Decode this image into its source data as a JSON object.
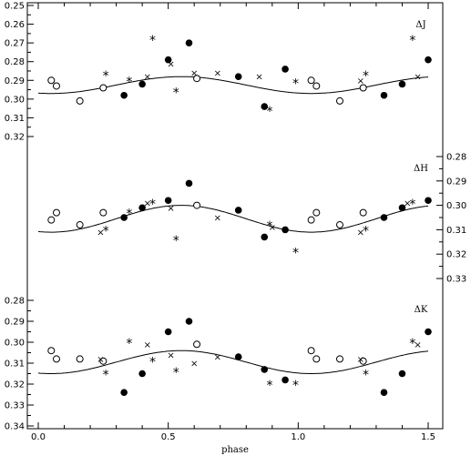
{
  "chart_data": {
    "type": "scatter",
    "x_label": "phase",
    "x_range": [
      -0.1,
      1.57
    ],
    "x_ticks": [
      "0.0",
      "0.5",
      "1.0",
      "1.5"
    ],
    "x_tick_values": [
      0,
      0.5,
      1.0,
      1.5
    ],
    "symbol_legend": {
      "filled": "●",
      "open": "○",
      "star": "*",
      "cross": "×"
    },
    "panels": [
      {
        "label": "ΔJ",
        "y_ticks": [
          "0.25",
          "0.26",
          "0.27",
          "0.28",
          "0.29",
          "0.30",
          "0.31",
          "0.32"
        ],
        "y_tick_values": [
          0.25,
          0.26,
          0.27,
          0.28,
          0.29,
          0.3,
          0.31,
          0.32
        ],
        "y_range": [
          0.25,
          0.325
        ],
        "tick_side": "left",
        "curve": {
          "mean": 0.2925,
          "amplitude": 0.0045
        },
        "filled": [
          [
            0.33,
            0.298
          ],
          [
            0.4,
            0.292
          ],
          [
            0.5,
            0.279
          ],
          [
            0.58,
            0.27
          ],
          [
            0.77,
            0.288
          ],
          [
            0.87,
            0.304
          ],
          [
            0.95,
            0.284
          ],
          [
            1.33,
            0.298
          ],
          [
            1.4,
            0.292
          ],
          [
            1.5,
            0.279
          ]
        ],
        "open": [
          [
            0.05,
            0.29
          ],
          [
            0.07,
            0.293
          ],
          [
            0.16,
            0.301
          ],
          [
            0.25,
            0.294
          ],
          [
            0.61,
            0.289
          ],
          [
            1.05,
            0.29
          ],
          [
            1.07,
            0.293
          ],
          [
            1.16,
            0.301
          ],
          [
            1.25,
            0.294
          ]
        ],
        "star": [
          [
            0.26,
            0.287
          ],
          [
            0.35,
            0.29
          ],
          [
            0.44,
            0.268
          ],
          [
            0.53,
            0.296
          ],
          [
            0.89,
            0.306
          ],
          [
            0.99,
            0.291
          ],
          [
            1.26,
            0.287
          ],
          [
            1.44,
            0.268
          ]
        ],
        "cross": [
          [
            0.42,
            0.288
          ],
          [
            0.51,
            0.281
          ],
          [
            0.6,
            0.286
          ],
          [
            0.69,
            0.286
          ],
          [
            0.85,
            0.288
          ],
          [
            1.24,
            0.29
          ],
          [
            1.46,
            0.288
          ]
        ]
      },
      {
        "label": "ΔH",
        "y_ticks": [
          "0.28",
          "0.29",
          "0.30",
          "0.31",
          "0.32",
          "0.33"
        ],
        "y_tick_values": [
          0.28,
          0.29,
          0.3,
          0.31,
          0.32,
          0.33
        ],
        "y_range": [
          0.28,
          0.335
        ],
        "tick_side": "right",
        "curve": {
          "mean": 0.3055,
          "amplitude": 0.0055
        },
        "filled": [
          [
            0.33,
            0.305
          ],
          [
            0.4,
            0.301
          ],
          [
            0.5,
            0.298
          ],
          [
            0.58,
            0.291
          ],
          [
            0.77,
            0.302
          ],
          [
            0.87,
            0.313
          ],
          [
            0.95,
            0.31
          ],
          [
            1.33,
            0.305
          ],
          [
            1.4,
            0.301
          ],
          [
            1.5,
            0.298
          ]
        ],
        "open": [
          [
            0.05,
            0.306
          ],
          [
            0.07,
            0.303
          ],
          [
            0.16,
            0.308
          ],
          [
            0.25,
            0.303
          ],
          [
            0.61,
            0.3
          ],
          [
            1.05,
            0.306
          ],
          [
            1.07,
            0.303
          ],
          [
            1.16,
            0.308
          ],
          [
            1.25,
            0.303
          ]
        ],
        "star": [
          [
            0.26,
            0.31
          ],
          [
            0.35,
            0.303
          ],
          [
            0.44,
            0.299
          ],
          [
            0.53,
            0.314
          ],
          [
            0.89,
            0.308
          ],
          [
            0.99,
            0.319
          ],
          [
            1.26,
            0.31
          ],
          [
            1.44,
            0.299
          ]
        ],
        "cross": [
          [
            0.24,
            0.311
          ],
          [
            0.42,
            0.299
          ],
          [
            0.51,
            0.301
          ],
          [
            0.69,
            0.305
          ],
          [
            0.9,
            0.309
          ],
          [
            1.24,
            0.311
          ],
          [
            1.42,
            0.299
          ]
        ]
      },
      {
        "label": "ΔK",
        "y_ticks": [
          "0.28",
          "0.29",
          "0.30",
          "0.31",
          "0.32",
          "0.33",
          "0.34"
        ],
        "y_tick_values": [
          0.28,
          0.29,
          0.3,
          0.31,
          0.32,
          0.33,
          0.34
        ],
        "y_range": [
          0.28,
          0.341
        ],
        "tick_side": "left",
        "curve": {
          "mean": 0.3095,
          "amplitude": 0.0055
        },
        "filled": [
          [
            0.33,
            0.324
          ],
          [
            0.4,
            0.315
          ],
          [
            0.5,
            0.295
          ],
          [
            0.58,
            0.29
          ],
          [
            0.77,
            0.307
          ],
          [
            0.87,
            0.313
          ],
          [
            0.95,
            0.318
          ],
          [
            1.33,
            0.324
          ],
          [
            1.4,
            0.315
          ],
          [
            1.5,
            0.295
          ]
        ],
        "open": [
          [
            0.05,
            0.304
          ],
          [
            0.07,
            0.308
          ],
          [
            0.16,
            0.308
          ],
          [
            0.25,
            0.309
          ],
          [
            0.61,
            0.301
          ],
          [
            1.05,
            0.304
          ],
          [
            1.07,
            0.308
          ],
          [
            1.16,
            0.308
          ],
          [
            1.25,
            0.309
          ]
        ],
        "star": [
          [
            0.26,
            0.315
          ],
          [
            0.35,
            0.3
          ],
          [
            0.44,
            0.309
          ],
          [
            0.53,
            0.314
          ],
          [
            0.89,
            0.32
          ],
          [
            0.99,
            0.32
          ],
          [
            1.26,
            0.315
          ],
          [
            1.44,
            0.3
          ]
        ],
        "cross": [
          [
            0.24,
            0.308
          ],
          [
            0.42,
            0.301
          ],
          [
            0.51,
            0.306
          ],
          [
            0.6,
            0.31
          ],
          [
            0.69,
            0.307
          ],
          [
            1.24,
            0.308
          ],
          [
            1.46,
            0.301
          ]
        ]
      }
    ]
  }
}
